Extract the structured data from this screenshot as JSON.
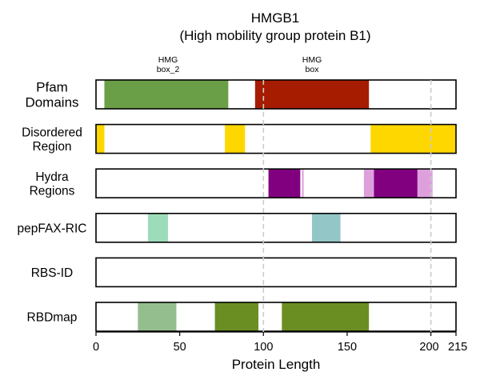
{
  "chart_data": {
    "type": "bar",
    "title": "HMGB1",
    "subtitle": "(High mobility group protein B1)",
    "xlabel": "Protein Length",
    "xlim": [
      0,
      215
    ],
    "xticks": [
      0,
      50,
      100,
      150,
      200,
      215
    ],
    "reference_lines": [
      100,
      200
    ],
    "colors": {
      "track_fill": "#ffffff",
      "track_border": "#000000",
      "reference_line": "#cccccc"
    },
    "tracks": [
      {
        "label": "Pfam\nDomains",
        "segments": [
          {
            "start": 5,
            "end": 79,
            "color": "#6a9f48"
          },
          {
            "start": 95,
            "end": 163,
            "color": "#a61c00"
          }
        ],
        "annotations": [
          {
            "text": "HMG\nbox_2",
            "x": 43
          },
          {
            "text": "HMG\nbox",
            "x": 129
          }
        ]
      },
      {
        "label": "Disordered\nRegion",
        "segments": [
          {
            "start": 0,
            "end": 5,
            "color": "#ffd700"
          },
          {
            "start": 77,
            "end": 89,
            "color": "#ffd700"
          },
          {
            "start": 164,
            "end": 215,
            "color": "#ffd700"
          }
        ]
      },
      {
        "label": "Hydra\nRegions",
        "segments": [
          {
            "start": 103,
            "end": 122,
            "color": "#800080"
          },
          {
            "start": 123,
            "end": 124,
            "color": "#dda0dd"
          },
          {
            "start": 160,
            "end": 166,
            "color": "#dda0dd"
          },
          {
            "start": 166,
            "end": 192,
            "color": "#800080"
          },
          {
            "start": 192,
            "end": 201,
            "color": "#dda0dd"
          }
        ]
      },
      {
        "label": "pepFAX-RIC",
        "segments": [
          {
            "start": 31,
            "end": 43,
            "color": "#9ddcba"
          },
          {
            "start": 129,
            "end": 146,
            "color": "#93c6c6"
          }
        ]
      },
      {
        "label": "RBS-ID",
        "segments": []
      },
      {
        "label": "RBDmap",
        "segments": [
          {
            "start": 25,
            "end": 48,
            "color": "#94be8e"
          },
          {
            "start": 71,
            "end": 97,
            "color": "#6b8e23"
          },
          {
            "start": 111,
            "end": 163,
            "color": "#6b8e23"
          }
        ]
      }
    ]
  }
}
